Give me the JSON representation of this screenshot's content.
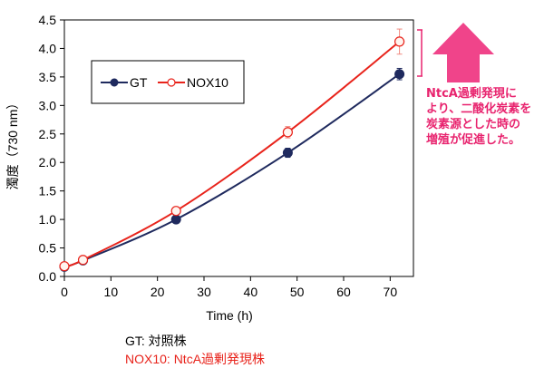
{
  "chart_data": {
    "type": "line",
    "xlabel": "Time (h)",
    "ylabel": "濁度（730 nm）",
    "xlim": [
      0,
      75
    ],
    "ylim": [
      0,
      4.5
    ],
    "x_ticks": [
      "0",
      "10",
      "20",
      "30",
      "40",
      "50",
      "60",
      "70"
    ],
    "y_ticks": [
      "0.0",
      "0.5",
      "1.0",
      "1.5",
      "2.0",
      "2.5",
      "3.0",
      "3.5",
      "4.0",
      "4.5"
    ],
    "grid": false,
    "legend_position": "upper-left",
    "series": [
      {
        "name": "GT",
        "color": "#1f2a5e",
        "marker": "filled-circle",
        "x": [
          0,
          4,
          24,
          48,
          72
        ],
        "y": [
          0.17,
          0.28,
          1.0,
          2.17,
          3.55
        ],
        "err": [
          0.02,
          0.02,
          0.03,
          0.08,
          0.1
        ]
      },
      {
        "name": "NOX10",
        "color": "#e8231b",
        "marker": "open-circle",
        "x": [
          0,
          4,
          24,
          48,
          72
        ],
        "y": [
          0.18,
          0.29,
          1.15,
          2.53,
          4.12
        ],
        "err": [
          0.02,
          0.02,
          0.03,
          0.1,
          0.22
        ]
      }
    ]
  },
  "annotation": {
    "color": "#e8236e",
    "lines": [
      "NtcA過剰発現に",
      "より、二酸化炭素を",
      "炭素源とした時の",
      "増殖が促進した。"
    ]
  },
  "caption": {
    "gt_line": "GT: 対照株",
    "nox_line": "NOX10: NtcA過剰発現株",
    "gt_color": "#000000",
    "nox_color": "#e8231b"
  }
}
